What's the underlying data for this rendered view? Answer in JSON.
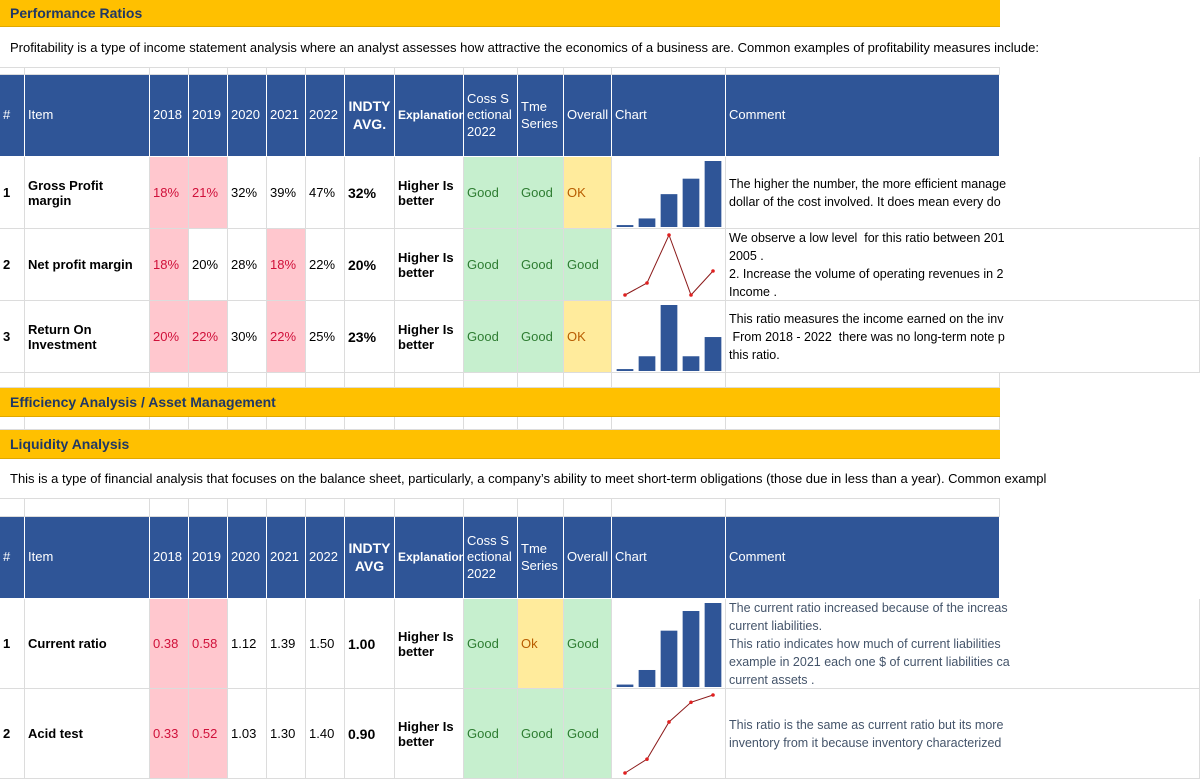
{
  "styles": {
    "bad": {
      "fill": "#ffc7ce",
      "color": "#d0103a"
    },
    "good": {
      "fill": "#c6efce",
      "color": "#2e7d32"
    },
    "neutral": {
      "fill": "#ffeb9c",
      "color": "#b85c00"
    }
  },
  "sections": [
    {
      "title": "Performance Ratios",
      "description": "Profitability is a type of income statement analysis where an analyst assesses how attractive the economics of a business are. Common examples of profitability measures include:",
      "table": {
        "header": [
          "#",
          "Item",
          "2018",
          "2019",
          "2020",
          "2021",
          "2022",
          "INDTY AVG.",
          "Explanation",
          "Coss Sectional 2022",
          "Tme Series",
          "Overall",
          "Chart",
          "Comment"
        ],
        "rows": [
          {
            "num": "1",
            "item": "Gross Profit  margin",
            "years": [
              "18%",
              "21%",
              "32%",
              "39%",
              "47%"
            ],
            "year_styles": [
              "bad",
              "bad",
              null,
              null,
              null
            ],
            "avg": "32%",
            "explanation": "Higher Is better",
            "ratings": [
              "Good",
              "Good",
              "OK"
            ],
            "rating_styles": [
              "good",
              "good",
              "neutral"
            ],
            "chart": "bar",
            "comment": [
              "The higher the number, the more efficient manage",
              "dollar of the cost involved. It does mean every do"
            ]
          },
          {
            "num": "2",
            "item": "Net profit margin",
            "years": [
              "18%",
              "20%",
              "28%",
              "18%",
              "22%"
            ],
            "year_styles": [
              "bad",
              null,
              null,
              "bad",
              null
            ],
            "avg": "20%",
            "explanation": "Higher Is better",
            "ratings": [
              "Good",
              "Good",
              "Good"
            ],
            "rating_styles": [
              "good",
              "good",
              "good"
            ],
            "chart": "line",
            "comment": [
              "We observe a low level  for this ratio between 201",
              "2005 .",
              "2. Increase the volume of operating revenues in 2",
              "Income ."
            ]
          },
          {
            "num": "3",
            "item": "Return On Investment",
            "years": [
              "20%",
              "22%",
              "30%",
              "22%",
              "25%"
            ],
            "year_styles": [
              "bad",
              "bad",
              null,
              "bad",
              null
            ],
            "avg": "23%",
            "explanation": "Higher Is better",
            "ratings": [
              "Good",
              "Good",
              "OK"
            ],
            "rating_styles": [
              "good",
              "good",
              "neutral"
            ],
            "chart": "bar",
            "comment": [
              "This ratio measures the income earned on the inv",
              " From 2018 - 2022  there was no long-term note p",
              "this ratio."
            ]
          }
        ]
      }
    },
    {
      "title": "Efficiency Analysis / Asset Management"
    },
    {
      "title": "Liquidity Analysis",
      "description": "This is a type of financial analysis that focuses on the balance sheet, particularly, a company’s ability to meet short-term obligations (those due in less than a year). Common exampl",
      "table": {
        "header": [
          "#",
          "Item",
          "2018",
          "2019",
          "2020",
          "2021",
          "2022",
          "INDTY AVG",
          "Explanation",
          "Coss Sectional 2022",
          "Tme Series",
          "Overall",
          "Chart",
          "Comment"
        ],
        "rows": [
          {
            "num": "1",
            "item": " Current ratio",
            "years": [
              "0.38",
              "0.58",
              "1.12",
              "1.39",
              "1.50"
            ],
            "year_styles": [
              "bad",
              "bad",
              null,
              null,
              null
            ],
            "avg": "1.00",
            "explanation": "Higher Is better",
            "ratings": [
              "Good",
              "Ok",
              "Good"
            ],
            "rating_styles": [
              "good",
              "neutral",
              "good"
            ],
            "chart": "bar",
            "comment": [
              "The current ratio increased because of the increas",
              "current liabilities.",
              "This ratio indicates how much of current liabilities",
              "example in 2021 each one $ of current liabilities ca",
              "current assets ."
            ]
          },
          {
            "num": "2",
            "item": "Acid test",
            "years": [
              "0.33",
              "0.52",
              "1.03",
              "1.30",
              "1.40"
            ],
            "year_styles": [
              "bad",
              "bad",
              null,
              null,
              null
            ],
            "avg": "0.90",
            "explanation": "Higher Is better",
            "ratings": [
              "Good",
              "Good",
              "Good"
            ],
            "rating_styles": [
              "good",
              "good",
              "good"
            ],
            "chart": "line",
            "comment": [
              "This ratio is the same as current ratio but its more",
              "inventory from it because inventory characterized"
            ]
          }
        ]
      }
    }
  ]
}
